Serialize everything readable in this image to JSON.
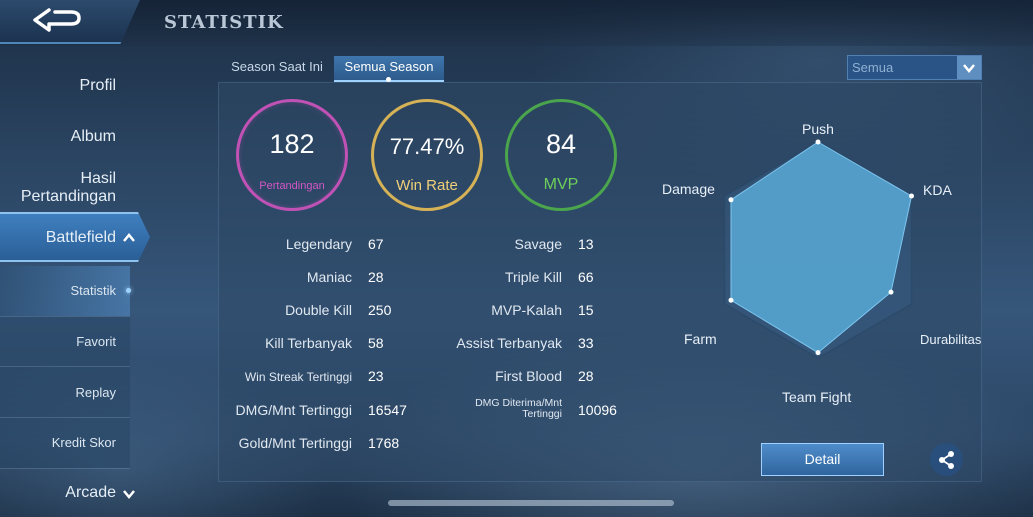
{
  "header": {
    "title": "STATISTIK"
  },
  "sidebar": {
    "items": [
      {
        "label": "Profil"
      },
      {
        "label": "Album"
      },
      {
        "label": "Hasil Pertandingan"
      },
      {
        "label": "Battlefield"
      }
    ],
    "subitems": [
      {
        "label": "Statistik"
      },
      {
        "label": "Favorit"
      },
      {
        "label": "Replay"
      },
      {
        "label": "Kredit Skor"
      }
    ],
    "bottom": {
      "label": "Arcade"
    }
  },
  "tabs": [
    {
      "label": "Season Saat Ini"
    },
    {
      "label": "Semua Season"
    }
  ],
  "filter": {
    "value": "Semua"
  },
  "summary": {
    "matches": {
      "value": "182",
      "label": "Pertandingan",
      "color": "#c052b5"
    },
    "winrate": {
      "value": "77.47%",
      "label": "Win Rate",
      "color": "#d6b257"
    },
    "mvp": {
      "value": "84",
      "label": "MVP",
      "color": "#4aa54c"
    }
  },
  "stats_left": [
    {
      "label": "Legendary",
      "value": "67"
    },
    {
      "label": "Maniac",
      "value": "28"
    },
    {
      "label": "Double Kill",
      "value": "250"
    },
    {
      "label": "Kill Terbanyak",
      "value": "58"
    },
    {
      "label": "Win Streak Tertinggi",
      "value": "23"
    },
    {
      "label": "DMG/Mnt Tertinggi",
      "value": "16547"
    },
    {
      "label": "Gold/Mnt Tertinggi",
      "value": "1768"
    }
  ],
  "stats_right": [
    {
      "label": "Savage",
      "value": "13"
    },
    {
      "label": "Triple Kill",
      "value": "66"
    },
    {
      "label": "MVP-Kalah",
      "value": "15"
    },
    {
      "label": "Assist Terbanyak",
      "value": "33"
    },
    {
      "label": "First Blood",
      "value": "28"
    },
    {
      "label": "DMG Diterima/Mnt Tertinggi",
      "value": "10096"
    }
  ],
  "radar": {
    "axes": [
      "Push",
      "KDA",
      "Durabilitas",
      "Team Fight",
      "Farm",
      "Damage"
    ],
    "values": [
      1.0,
      1.0,
      0.78,
      0.95,
      0.93,
      0.93
    ],
    "fill": "#58a9d6"
  },
  "buttons": {
    "detail": "Detail"
  }
}
